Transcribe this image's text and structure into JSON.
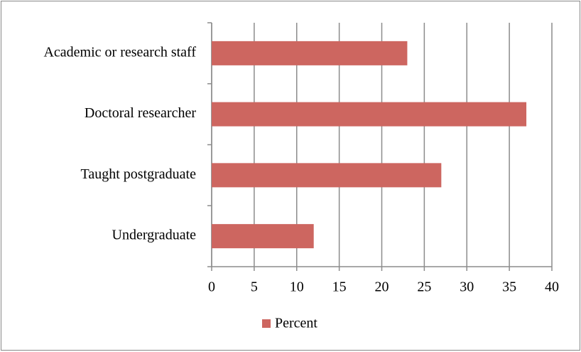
{
  "chart_data": {
    "type": "barh",
    "categories": [
      "Academic or research staff",
      "Doctoral researcher",
      "Taught postgraduate",
      "Undergraduate"
    ],
    "series": [
      {
        "name": "Percent",
        "color": "#cd6660",
        "values": [
          23,
          37,
          27,
          12
        ]
      }
    ],
    "xlim": [
      0,
      40
    ],
    "xticks": [
      0,
      5,
      10,
      15,
      20,
      25,
      30,
      35,
      40
    ],
    "grid": true,
    "legend": "bottom"
  }
}
